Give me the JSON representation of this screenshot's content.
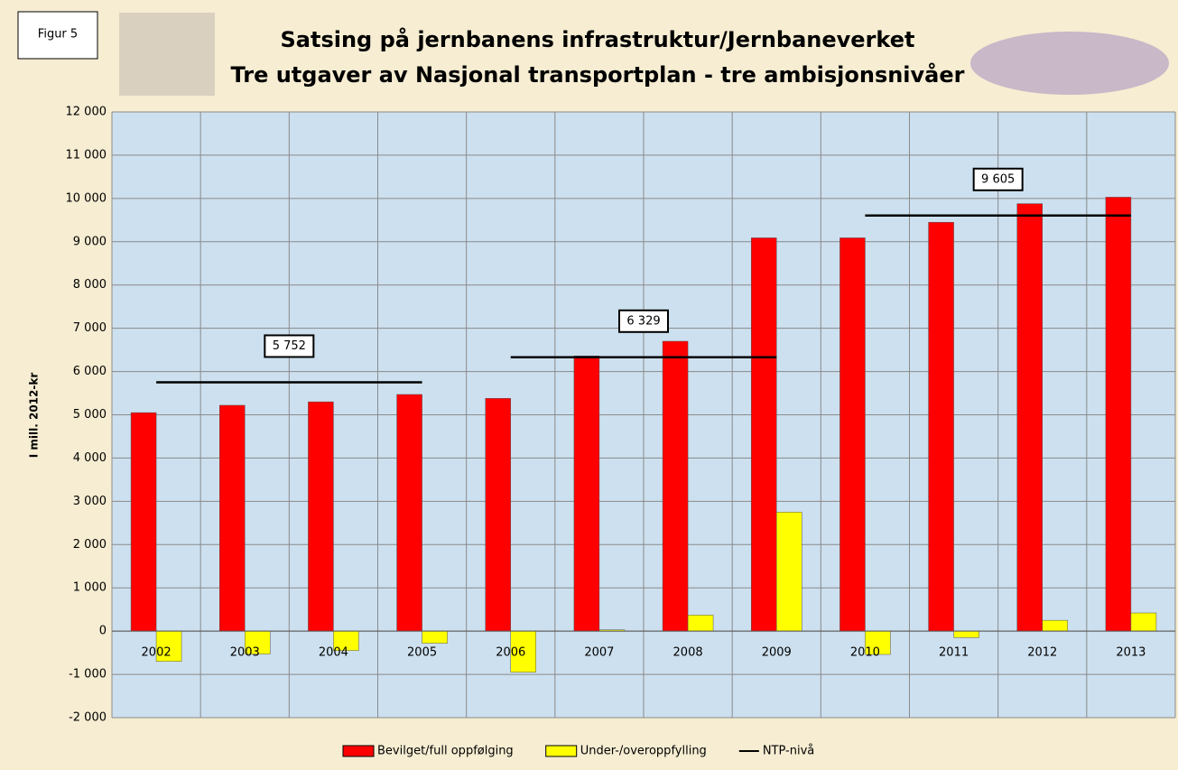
{
  "figure_label": "Figur 5",
  "chart_data": {
    "type": "bar",
    "title": "Satsing på jernbanens infrastruktur/Jernbaneverket",
    "subtitle": "Tre utgaver av Nasjonal transportplan - tre ambisjonsnivåer",
    "y_label": "I mill. 2012-kr",
    "categories": [
      "2002",
      "2003",
      "2004",
      "2005",
      "2006",
      "2007",
      "2008",
      "2009",
      "2010",
      "2011",
      "2012",
      "2013"
    ],
    "series": [
      {
        "name": "Bevilget/full oppfølging",
        "color": "#ff0000",
        "values": [
          5050,
          5220,
          5300,
          5470,
          5380,
          6360,
          6700,
          9090,
          9090,
          9450,
          9880,
          10030
        ]
      },
      {
        "name": "Under-/overoppfylling",
        "color": "#ffff00",
        "values": [
          -700,
          -530,
          -450,
          -280,
          -950,
          30,
          370,
          2750,
          -540,
          -150,
          250,
          420
        ]
      },
      {
        "name": "NTP-nivå",
        "color": "#000000",
        "type": "line",
        "values": [
          5752,
          5752,
          5752,
          5752,
          6329,
          6329,
          6329,
          6329,
          9605,
          9605,
          9605,
          9605
        ],
        "value_labels": [
          "5 752",
          null,
          null,
          null,
          "6 329",
          null,
          null,
          null,
          "9 605",
          null,
          null,
          null
        ]
      }
    ],
    "ylim": [
      -2000,
      12000
    ],
    "yticks": [
      {
        "value": -2000,
        "label": "-2 000"
      },
      {
        "value": -1000,
        "label": "-1 000"
      },
      0,
      {
        "value": 1000,
        "label": "1 000"
      },
      {
        "value": 2000,
        "label": "2 000"
      },
      {
        "value": 3000,
        "label": "3 000"
      },
      {
        "value": 4000,
        "label": "4 000"
      },
      {
        "value": 5000,
        "label": "5 000"
      },
      {
        "value": 6000,
        "label": "6 000"
      },
      {
        "value": 7000,
        "label": "7 000"
      },
      {
        "value": 8000,
        "label": "8 000"
      },
      {
        "value": 9000,
        "label": "9 000"
      },
      {
        "value": 10000,
        "label": "10 000"
      },
      {
        "value": 11000,
        "label": "11 000"
      },
      {
        "value": 12000,
        "label": "12 000"
      }
    ],
    "grid": true,
    "legend": "bottom"
  }
}
